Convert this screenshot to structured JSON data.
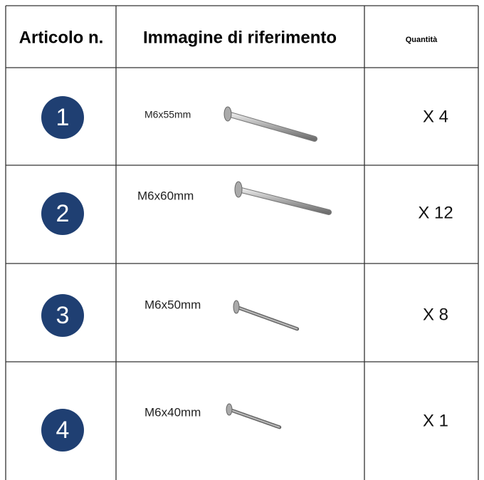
{
  "table": {
    "header": [
      "Articolo n.",
      "Immagine di riferimento",
      "Quantità"
    ],
    "rows": [
      {
        "number": "1",
        "size": "M6x55mm",
        "quantity": "X 4"
      },
      {
        "number": "2",
        "size": "M6x60mm",
        "quantity": "X 12"
      },
      {
        "number": "3",
        "size": "M6x50mm",
        "quantity": "X 8"
      },
      {
        "number": "4",
        "size": "M6x40mm",
        "quantity": "X 1"
      }
    ]
  }
}
